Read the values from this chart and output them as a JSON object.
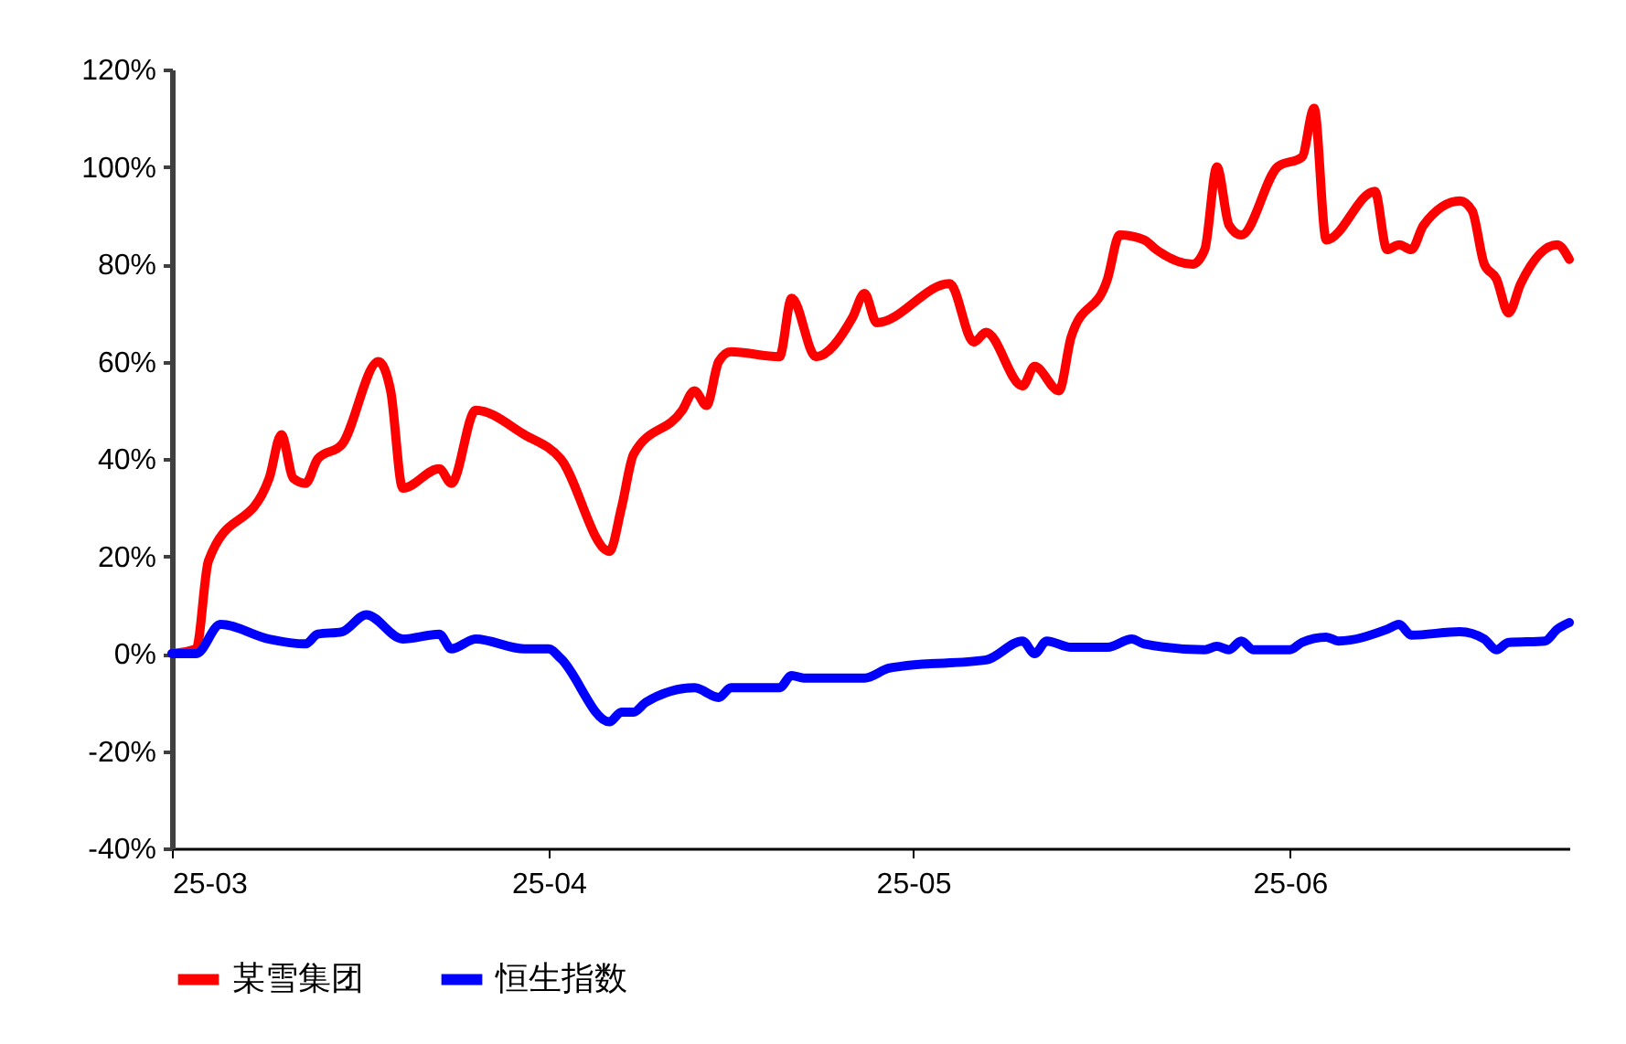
{
  "chart_data": {
    "type": "line",
    "series": [
      {
        "name": "某雪集团",
        "color": "#ff0000",
        "x": [
          "--03-01",
          "--03-03",
          "--03-04",
          "--03-09",
          "--03-10",
          "--03-11",
          "--03-12",
          "--03-13",
          "--03-15",
          "--03-18",
          "--03-19",
          "--03-20",
          "--03-23",
          "--03-24",
          "--03-26",
          "--03-30",
          "--04-02",
          "--04-06",
          "--04-07",
          "--04-08",
          "--04-12",
          "--04-13",
          "--04-14",
          "--04-15",
          "--04-16",
          "--04-20",
          "--04-21",
          "--04-23",
          "--04-26",
          "--04-27",
          "--04-28",
          "--05-04",
          "--05-06",
          "--05-07",
          "--05-10",
          "--05-11",
          "--05-13",
          "--05-14",
          "--05-17",
          "--05-18",
          "--05-20",
          "--05-21",
          "--05-24",
          "--05-25",
          "--05-26",
          "--05-27",
          "--05-28",
          "--05-31",
          "--06-02",
          "--06-03",
          "--06-04",
          "--06-08",
          "--06-09",
          "--06-10",
          "--06-11",
          "--06-12",
          "--06-15",
          "--06-16",
          "--06-17",
          "--06-18",
          "--06-19",
          "--06-20",
          "--06-23",
          "--06-24"
        ],
        "values": [
          0,
          1,
          19,
          36,
          45,
          36,
          35,
          40,
          43,
          60,
          54,
          34,
          38,
          35,
          50,
          45,
          40,
          21,
          30,
          41,
          50,
          54,
          51,
          60,
          62,
          61,
          73,
          61,
          69,
          74,
          68,
          76,
          64,
          66,
          55,
          59,
          54,
          65,
          77,
          86,
          85,
          83,
          80,
          83,
          100,
          88,
          86,
          100,
          102,
          112,
          85,
          95,
          83,
          84,
          83,
          88,
          93,
          91,
          80,
          77,
          70,
          76,
          84,
          81
        ]
      },
      {
        "name": "恒生指数",
        "color": "#0000ff",
        "x": [
          "--03-01",
          "--03-03",
          "--03-05",
          "--03-09",
          "--03-12",
          "--03-13",
          "--03-15",
          "--03-17",
          "--03-20",
          "--03-23",
          "--03-24",
          "--03-26",
          "--03-30",
          "--04-01",
          "--04-02",
          "--04-06",
          "--04-07",
          "--04-08",
          "--04-09",
          "--04-13",
          "--04-15",
          "--04-16",
          "--04-20",
          "--04-21",
          "--04-22",
          "--04-27",
          "--04-29",
          "--04-30",
          "--05-07",
          "--05-10",
          "--05-11",
          "--05-12",
          "--05-14",
          "--05-17",
          "--05-19",
          "--05-20",
          "--05-25",
          "--05-26",
          "--05-27",
          "--05-28",
          "--05-29",
          "--06-01",
          "--06-02",
          "--06-04",
          "--06-05",
          "--06-09",
          "--06-10",
          "--06-11",
          "--06-15",
          "--06-17",
          "--06-18",
          "--06-19",
          "--06-22",
          "--06-23",
          "--06-24"
        ],
        "values": [
          0,
          0,
          6,
          3,
          2,
          4,
          4.5,
          8,
          3,
          4,
          1,
          3,
          1,
          1,
          -1,
          -14,
          -12,
          -12,
          -10,
          -7,
          -9,
          -7,
          -7,
          -4.5,
          -5,
          -5,
          -3,
          -2.6,
          -1.3,
          2.6,
          0,
          2.6,
          1.3,
          1.3,
          3,
          2,
          0.8,
          1.5,
          0.8,
          2.6,
          0.8,
          0.8,
          2.3,
          3.4,
          2.6,
          5,
          6,
          3.8,
          4.5,
          3,
          0.8,
          2.3,
          2.6,
          5,
          6.4
        ]
      }
    ],
    "xlim": [
      "--03-01",
      "--06-24"
    ],
    "xticks": [
      {
        "value": "--03-01",
        "label": "25-03"
      },
      {
        "value": "--04-01",
        "label": "25-04"
      },
      {
        "value": "--05-01",
        "label": "25-05"
      },
      {
        "value": "--06-01",
        "label": "25-06"
      }
    ],
    "ylim": [
      -40,
      120
    ],
    "yticks": [
      {
        "value": -40,
        "label": "-40%"
      },
      {
        "value": -20,
        "label": "-20%"
      },
      {
        "value": 0,
        "label": "0%"
      },
      {
        "value": 20,
        "label": "20%"
      },
      {
        "value": 40,
        "label": "40%"
      },
      {
        "value": 60,
        "label": "60%"
      },
      {
        "value": 80,
        "label": "80%"
      },
      {
        "value": 100,
        "label": "100%"
      },
      {
        "value": 120,
        "label": "120%"
      }
    ],
    "grid": false,
    "legend": "bottom",
    "line_style": "solid",
    "marker": "none"
  }
}
